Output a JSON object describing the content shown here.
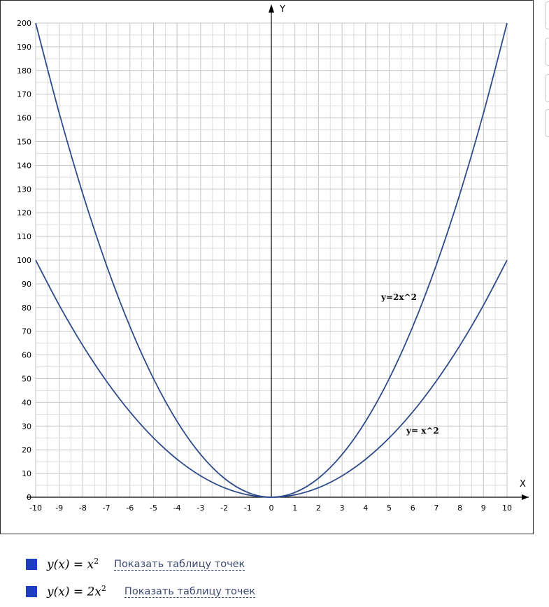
{
  "chart_data": {
    "type": "line",
    "x_axis_label": "X",
    "y_axis_label": "Y",
    "xlim": [
      -10,
      10
    ],
    "ylim": [
      0,
      200
    ],
    "x_ticks": [
      -10,
      -9,
      -8,
      -7,
      -6,
      -5,
      -4,
      -3,
      -2,
      -1,
      0,
      1,
      2,
      3,
      4,
      5,
      6,
      7,
      8,
      9,
      10
    ],
    "y_ticks": [
      0,
      10,
      20,
      30,
      40,
      50,
      60,
      70,
      80,
      90,
      100,
      110,
      120,
      130,
      140,
      150,
      160,
      170,
      180,
      190,
      200
    ],
    "grid": true,
    "series": [
      {
        "name": "y= x^2",
        "color": "#2e4a8a",
        "x": [
          -10,
          -9,
          -8,
          -7,
          -6,
          -5,
          -4,
          -3,
          -2,
          -1,
          0,
          1,
          2,
          3,
          4,
          5,
          6,
          7,
          8,
          9,
          10
        ],
        "y": [
          100,
          81,
          64,
          49,
          36,
          25,
          16,
          9,
          4,
          1,
          0,
          1,
          4,
          9,
          16,
          25,
          36,
          49,
          64,
          81,
          100
        ]
      },
      {
        "name": "y=2x^2",
        "color": "#2e4a8a",
        "x": [
          -10,
          -9,
          -8,
          -7,
          -6,
          -5,
          -4,
          -3,
          -2,
          -1,
          0,
          1,
          2,
          3,
          4,
          5,
          6,
          7,
          8,
          9,
          10
        ],
        "y": [
          200,
          162,
          128,
          98,
          72,
          50,
          32,
          18,
          8,
          2,
          0,
          2,
          8,
          18,
          32,
          50,
          72,
          98,
          128,
          162,
          200
        ]
      }
    ]
  },
  "legend": {
    "swatch_color": "#1f3fbf",
    "items": [
      {
        "formula_lhs": "y(x) = x",
        "formula_exp": "2",
        "link": "Показать таблицу точек"
      },
      {
        "formula_lhs": "y(x) = 2x",
        "formula_exp": "2",
        "link": "Показать таблицу точек"
      }
    ]
  }
}
